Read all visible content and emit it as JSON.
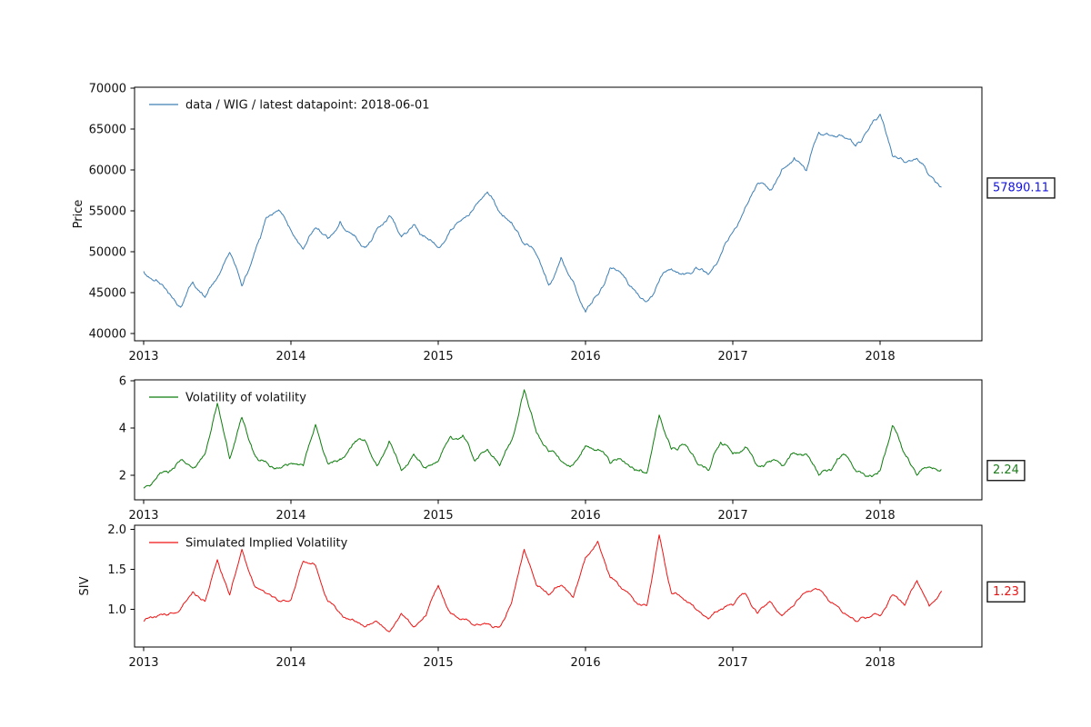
{
  "figure": {
    "background": "#ffffff",
    "text_color": "#000000"
  },
  "chart_data": [
    {
      "type": "line",
      "series_label": "data / WIG / latest datapoint: 2018-06-01",
      "ylabel": "Price",
      "line_color": "#3d7fb5",
      "annotation": "57890.11",
      "annotation_color": "#1414e0",
      "legend_position": "upper-left",
      "grid": false,
      "x_start": 2013.0,
      "x_step": 0.08333333,
      "xlim": [
        2012.938,
        2018.691
      ],
      "ylim": [
        39100,
        70100
      ],
      "xticks": [
        2013,
        2014,
        2015,
        2016,
        2017,
        2018
      ],
      "xtick_labels": [
        "2013",
        "2014",
        "2015",
        "2016",
        "2017",
        "2018"
      ],
      "yticks": [
        40000,
        45000,
        50000,
        55000,
        60000,
        65000,
        70000
      ],
      "ytick_labels": [
        "40000",
        "45000",
        "50000",
        "55000",
        "60000",
        "65000",
        "70000"
      ],
      "values": [
        47600,
        46600,
        44900,
        43200,
        46300,
        44400,
        46800,
        49900,
        45800,
        49800,
        54200,
        55100,
        52600,
        50300,
        52900,
        51600,
        53700,
        52100,
        50500,
        52800,
        54400,
        51800,
        53300,
        51700,
        50500,
        52700,
        54000,
        55600,
        57300,
        54800,
        53500,
        50900,
        49600,
        45900,
        49300,
        46400,
        42600,
        44700,
        48000,
        47200,
        45300,
        43900,
        46400,
        47900,
        47200,
        48100,
        47200,
        49600,
        52400,
        55400,
        58300,
        57500,
        60100,
        61500,
        59900,
        64600,
        64200,
        64100,
        62900,
        64800,
        66800,
        61700,
        60900,
        61400,
        59300,
        57890.11
      ]
    },
    {
      "type": "line",
      "series_label": "Volatility of volatility",
      "ylabel": "",
      "line_color": "#0d7d0d",
      "annotation": "2.24",
      "annotation_color": "#1a7d1a",
      "legend_position": "upper-left",
      "grid": false,
      "x_start": 2013.0,
      "x_step": 0.08333333,
      "xlim": [
        2012.938,
        2018.691
      ],
      "ylim": [
        0.96,
        6.04
      ],
      "xticks": [
        2013,
        2014,
        2015,
        2016,
        2017,
        2018
      ],
      "xtick_labels": [
        "2013",
        "2014",
        "2015",
        "2016",
        "2017",
        "2018"
      ],
      "yticks": [
        2,
        4,
        6
      ],
      "ytick_labels": [
        "2",
        "4",
        "6"
      ],
      "values": [
        1.45,
        1.85,
        2.1,
        2.65,
        2.3,
        2.9,
        5.05,
        2.7,
        4.45,
        2.9,
        2.55,
        2.3,
        2.5,
        2.4,
        4.15,
        2.5,
        2.7,
        3.3,
        3.5,
        2.4,
        3.45,
        2.2,
        2.9,
        2.3,
        2.6,
        3.65,
        3.7,
        2.6,
        3.1,
        2.4,
        3.5,
        5.62,
        3.8,
        3.0,
        2.6,
        2.45,
        3.25,
        3.1,
        2.5,
        2.6,
        2.2,
        2.1,
        4.55,
        3.1,
        3.3,
        2.6,
        2.2,
        3.4,
        2.9,
        3.2,
        2.4,
        2.6,
        2.4,
        2.95,
        2.9,
        2.0,
        2.2,
        2.9,
        2.2,
        1.95,
        2.2,
        4.1,
        2.9,
        2.0,
        2.35,
        2.24
      ]
    },
    {
      "type": "line",
      "series_label": "Simulated Implied Volatility",
      "ylabel": "SIV",
      "line_color": "#ef1212",
      "annotation": "1.23",
      "annotation_color": "#e81414",
      "legend_position": "upper-left",
      "grid": false,
      "x_start": 2013.0,
      "x_step": 0.08333333,
      "xlim": [
        2012.938,
        2018.691
      ],
      "ylim": [
        0.53,
        2.05
      ],
      "xticks": [
        2013,
        2014,
        2015,
        2016,
        2017,
        2018
      ],
      "xtick_labels": [
        "2013",
        "2014",
        "2015",
        "2016",
        "2017",
        "2018"
      ],
      "yticks": [
        1.0,
        1.5,
        2.0
      ],
      "ytick_labels": [
        "1.0",
        "1.5",
        "2.0"
      ],
      "values": [
        0.85,
        0.9,
        0.93,
        1.0,
        1.22,
        1.1,
        1.62,
        1.18,
        1.75,
        1.3,
        1.2,
        1.1,
        1.12,
        1.6,
        1.55,
        1.1,
        0.95,
        0.88,
        0.78,
        0.85,
        0.72,
        0.95,
        0.78,
        0.92,
        1.3,
        0.95,
        0.88,
        0.8,
        0.82,
        0.78,
        1.1,
        1.75,
        1.3,
        1.18,
        1.3,
        1.15,
        1.65,
        1.85,
        1.4,
        1.25,
        1.1,
        1.05,
        1.93,
        1.2,
        1.12,
        1.0,
        0.88,
        1.0,
        1.05,
        1.2,
        0.95,
        1.1,
        0.92,
        1.05,
        1.22,
        1.25,
        1.08,
        0.95,
        0.85,
        0.9,
        0.92,
        1.18,
        1.05,
        1.36,
        1.04,
        1.23
      ]
    }
  ]
}
